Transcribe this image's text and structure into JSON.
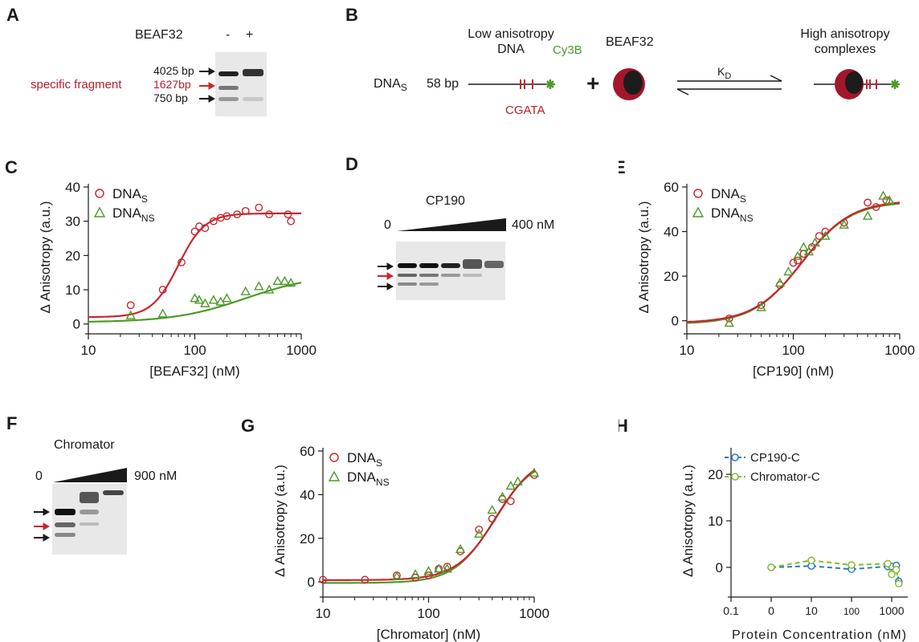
{
  "panels": {
    "A": {
      "letter": "A",
      "protein_label": "BEAF32",
      "minus": "-",
      "plus": "+",
      "markers": [
        "4025 bp",
        "1627bp",
        "750 bp"
      ],
      "specific_label": "specific fragment"
    },
    "B": {
      "letter": "B",
      "low_anisotropy": "Low anisotropy DNA",
      "dna_prefix": "DNA",
      "dna_sub": "S",
      "length": "58 bp",
      "dye": "Cy3B",
      "motif": "CGATA",
      "plus": "+",
      "protein": "BEAF32",
      "kd_k": "K",
      "kd_sub": "D",
      "high_anisotropy": "High anisotropy complexes"
    },
    "D": {
      "letter": "D",
      "protein": "CP190",
      "zero": "0",
      "max": "400 nM"
    },
    "F": {
      "letter": "F",
      "protein": "Chromator",
      "zero": "0",
      "max": "900 nM"
    }
  },
  "colors": {
    "red": "#c8262e",
    "green": "#4d9a2a",
    "blue": "#2d7bc1",
    "olive": "#8ab832",
    "black": "#1a1a1a"
  },
  "chart_data": [
    {
      "panel": "C",
      "letter": "C",
      "type": "scatter",
      "xlabel": "[BEAF32] (nM)",
      "ylabel": "Δ Anisotropy (a.u.)",
      "xscale": "log",
      "xlim": [
        10,
        1000
      ],
      "ylim": [
        -1,
        40
      ],
      "xticks": [
        10,
        100,
        1000
      ],
      "xticklabels": [
        "10",
        "100",
        "1000"
      ],
      "yticks": [
        0,
        10,
        20,
        30,
        40
      ],
      "yticklabels": [
        "0",
        "10",
        "20",
        "30",
        "40"
      ],
      "legend": [
        {
          "base": "DNA",
          "sub": "S",
          "marker": "circle",
          "color": "#c8262e"
        },
        {
          "base": "DNA",
          "sub": "NS",
          "marker": "triangle",
          "color": "#4d9a2a"
        }
      ],
      "series": [
        {
          "marker": "circle",
          "color": "#c8262e",
          "x": [
            25,
            50,
            75,
            100,
            110,
            125,
            150,
            175,
            200,
            250,
            300,
            400,
            500,
            750,
            800
          ],
          "y": [
            5.5,
            10,
            18,
            27,
            28.5,
            28,
            30,
            31,
            31.5,
            32,
            33,
            34,
            32,
            32,
            30
          ]
        },
        {
          "marker": "triangle",
          "color": "#4d9a2a",
          "x": [
            25,
            50,
            100,
            110,
            125,
            150,
            175,
            200,
            300,
            400,
            500,
            600,
            700,
            800
          ],
          "y": [
            2.5,
            3,
            7.5,
            7,
            6,
            7,
            6.5,
            7.5,
            9.5,
            11,
            10,
            12.5,
            12.5,
            12
          ]
        }
      ],
      "fits": [
        {
          "color": "#c8262e",
          "base": 2,
          "amp": 30.3,
          "kd": 70,
          "n": 3.5
        },
        {
          "color": "#4d9a2a",
          "base": 0.5,
          "amp": 14,
          "kd": 300,
          "n": 1.3
        }
      ]
    },
    {
      "panel": "E",
      "letter": "E",
      "type": "scatter",
      "xlabel": "[CP190] (nM)",
      "ylabel": "Δ Anisotropy (a.u.)",
      "xscale": "log",
      "xlim": [
        10,
        1000
      ],
      "ylim": [
        -3,
        60
      ],
      "xticks": [
        10,
        100,
        1000
      ],
      "xticklabels": [
        "10",
        "100",
        "1000"
      ],
      "yticks": [
        0,
        20,
        40,
        60
      ],
      "yticklabels": [
        "0",
        "20",
        "40",
        "60"
      ],
      "legend": [
        {
          "base": "DNA",
          "sub": "S",
          "marker": "circle",
          "color": "#c8262e"
        },
        {
          "base": "DNA",
          "sub": "NS",
          "marker": "triangle",
          "color": "#4d9a2a"
        }
      ],
      "series": [
        {
          "marker": "circle",
          "color": "#c8262e",
          "x": [
            25,
            50,
            75,
            100,
            110,
            125,
            150,
            175,
            200,
            300,
            500,
            600,
            750
          ],
          "y": [
            1,
            7,
            16,
            26,
            27,
            30,
            33,
            38,
            40,
            44,
            53,
            51,
            54
          ]
        },
        {
          "marker": "triangle",
          "color": "#4d9a2a",
          "x": [
            25,
            50,
            75,
            90,
            110,
            125,
            140,
            160,
            200,
            300,
            500,
            700,
            800
          ],
          "y": [
            -1,
            6,
            17,
            22,
            29,
            33,
            31,
            35,
            38,
            43,
            47,
            56,
            54
          ]
        }
      ],
      "fits": [
        {
          "color": "#4d9a2a",
          "base": -1.5,
          "amp": 55,
          "kd": 120,
          "n": 1.9
        },
        {
          "color": "#c8262e",
          "base": -1,
          "amp": 55,
          "kd": 122,
          "n": 1.9
        }
      ]
    },
    {
      "panel": "G",
      "letter": "G",
      "type": "scatter",
      "xlabel": "[Chromator] (nM)",
      "ylabel": "Δ Anisotropy (a.u.)",
      "xscale": "log",
      "xlim": [
        10,
        1000
      ],
      "ylim": [
        -4,
        60
      ],
      "xticks": [
        10,
        100,
        1000
      ],
      "xticklabels": [
        "10",
        "100",
        "1000"
      ],
      "yticks": [
        0,
        20,
        40,
        60
      ],
      "yticklabels": [
        "0",
        "20",
        "40",
        "60"
      ],
      "legend": [
        {
          "base": "DNA",
          "sub": "S",
          "marker": "circle",
          "color": "#c8262e"
        },
        {
          "base": "DNA",
          "sub": "NS",
          "marker": "triangle",
          "color": "#4d9a2a"
        }
      ],
      "series": [
        {
          "marker": "circle",
          "color": "#c8262e",
          "x": [
            10,
            25,
            50,
            75,
            100,
            125,
            150,
            200,
            300,
            400,
            500,
            600,
            1000
          ],
          "y": [
            1,
            1,
            3,
            2,
            3,
            6,
            7,
            14,
            24,
            29,
            38,
            37,
            49
          ]
        },
        {
          "marker": "triangle",
          "color": "#4d9a2a",
          "x": [
            50,
            75,
            100,
            125,
            150,
            200,
            300,
            400,
            500,
            600,
            700,
            1000
          ],
          "y": [
            2.5,
            3.5,
            5,
            6,
            6,
            15,
            22,
            33,
            39,
            44,
            46,
            50
          ]
        }
      ],
      "fits": [
        {
          "color": "#4d9a2a",
          "base": -0.5,
          "amp": 58,
          "kd": 420,
          "n": 2.3
        },
        {
          "color": "#c8262e",
          "base": 0.8,
          "amp": 58,
          "kd": 440,
          "n": 2.3
        }
      ]
    },
    {
      "panel": "H",
      "letter": "H",
      "type": "line",
      "xlabel": "Protein Concentration (nM)",
      "ylabel": "Δ Anisotropy (a.u.)",
      "xticklabels": [
        "0.1",
        "0",
        "10",
        "100",
        "1000"
      ],
      "yticks": [
        0,
        10,
        20
      ],
      "yticklabels": [
        "0",
        "10",
        "20"
      ],
      "ylim": [
        -5,
        25
      ],
      "legend": [
        {
          "label": "CP190-C",
          "color": "#2d7bc1"
        },
        {
          "label": "Chromator-C",
          "color": "#8ab832"
        }
      ],
      "series": [
        {
          "name": "CP190-C",
          "color": "#2d7bc1",
          "x": [
            "0",
            "10",
            "100",
            "800",
            "1000",
            "1300",
            "1500"
          ],
          "y": [
            0,
            0.3,
            -0.4,
            0.2,
            0.2,
            0.4,
            -3
          ]
        },
        {
          "name": "Chromator-C",
          "color": "#8ab832",
          "x": [
            "0",
            "10",
            "100",
            "800",
            "1000",
            "1300",
            "1500"
          ],
          "y": [
            0,
            1.5,
            0.5,
            0.8,
            -1.5,
            -0.5,
            -3.5
          ]
        }
      ]
    }
  ]
}
